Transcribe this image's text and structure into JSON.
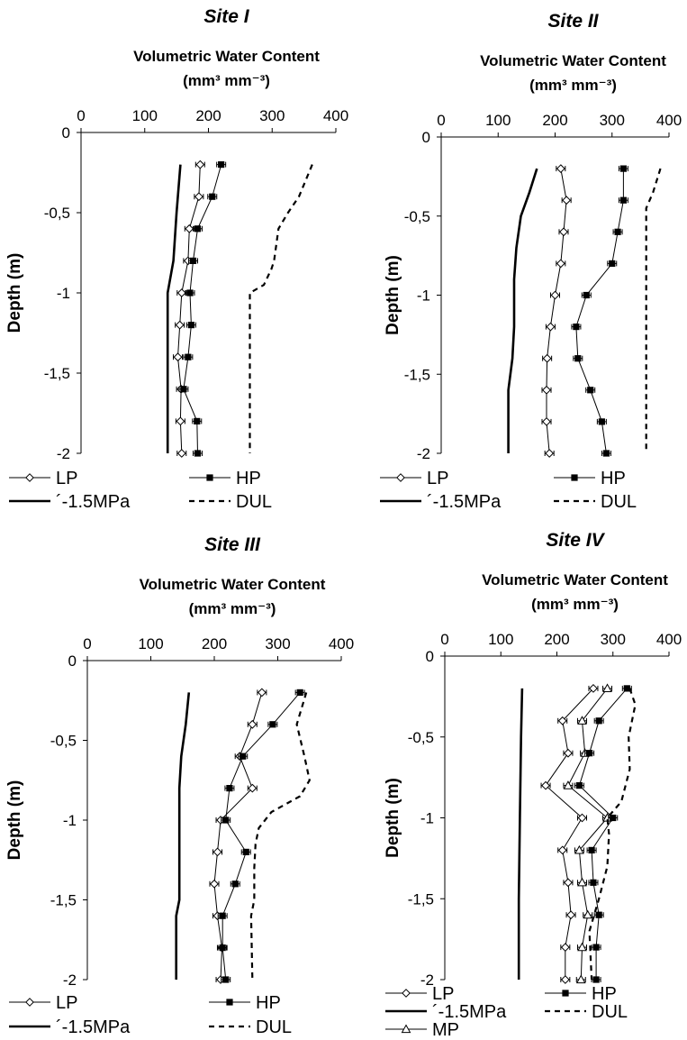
{
  "chart_data": [
    {
      "type": "line",
      "title": "Site I",
      "xlabel_line1": "Volumetric Water Content",
      "xlabel_line2": "(mm³ mm⁻³)",
      "ylabel": "Depth (m)",
      "xlim": [
        0,
        400
      ],
      "ylim": [
        -2,
        0
      ],
      "xticks": [
        "0",
        "100",
        "200",
        "300",
        "400"
      ],
      "yticks": [
        "0",
        "-0,5",
        "-1",
        "-1,5",
        "-2"
      ],
      "legend_rows": [
        [
          "LP",
          "HP"
        ],
        [
          "´-1.5MPa",
          "DUL"
        ]
      ],
      "series": [
        {
          "name": "LP",
          "style": "diamond",
          "points": [
            [
              187,
              -0.2
            ],
            [
              185,
              -0.4
            ],
            [
              170,
              -0.6
            ],
            [
              168,
              -0.8
            ],
            [
              158,
              -1.0
            ],
            [
              155,
              -1.2
            ],
            [
              152,
              -1.4
            ],
            [
              157,
              -1.6
            ],
            [
              156,
              -1.8
            ],
            [
              158,
              -2.0
            ]
          ]
        },
        {
          "name": "HP",
          "style": "square",
          "points": [
            [
              220,
              -0.2
            ],
            [
              206,
              -0.4
            ],
            [
              183,
              -0.6
            ],
            [
              176,
              -0.8
            ],
            [
              171,
              -1.0
            ],
            [
              173,
              -1.2
            ],
            [
              168,
              -1.4
            ],
            [
              161,
              -1.6
            ],
            [
              182,
              -1.8
            ],
            [
              183,
              -2.0
            ]
          ]
        },
        {
          "name": "´-1.5MPa",
          "style": "solid",
          "points": [
            [
              156,
              -0.2
            ],
            [
              150,
              -0.5
            ],
            [
              145,
              -0.8
            ],
            [
              136,
              -1.0
            ],
            [
              136,
              -1.5
            ],
            [
              136,
              -2.0
            ]
          ]
        },
        {
          "name": "DUL",
          "style": "dashed",
          "points": [
            [
              363,
              -0.2
            ],
            [
              342,
              -0.4
            ],
            [
              325,
              -0.5
            ],
            [
              310,
              -0.6
            ],
            [
              303,
              -0.8
            ],
            [
              299,
              -0.85
            ],
            [
              287,
              -0.95
            ],
            [
              265,
              -1.0
            ],
            [
              265,
              -2.0
            ]
          ]
        }
      ]
    },
    {
      "type": "line",
      "title": "Site II",
      "xlabel_line1": "Volumetric Water Content",
      "xlabel_line2": "(mm³ mm⁻³)",
      "ylabel": "Depth (m)",
      "xlim": [
        0,
        400
      ],
      "ylim": [
        -2,
        0
      ],
      "xticks": [
        "0",
        "100",
        "200",
        "300",
        "400"
      ],
      "yticks": [
        "0",
        "-0,5",
        "-1",
        "-1,5",
        "-2"
      ],
      "legend_rows": [
        [
          "LP",
          "HP"
        ],
        [
          "´-1.5MPa",
          "DUL"
        ]
      ],
      "series": [
        {
          "name": "LP",
          "style": "diamond",
          "points": [
            [
              210,
              -0.2
            ],
            [
              220,
              -0.4
            ],
            [
              215,
              -0.6
            ],
            [
              210,
              -0.8
            ],
            [
              200,
              -1.0
            ],
            [
              192,
              -1.2
            ],
            [
              186,
              -1.4
            ],
            [
              185,
              -1.6
            ],
            [
              185,
              -1.8
            ],
            [
              190,
              -2.0
            ]
          ]
        },
        {
          "name": "HP",
          "style": "square",
          "points": [
            [
              320,
              -0.2
            ],
            [
              320,
              -0.4
            ],
            [
              310,
              -0.6
            ],
            [
              300,
              -0.8
            ],
            [
              255,
              -1.0
            ],
            [
              237,
              -1.2
            ],
            [
              240,
              -1.4
            ],
            [
              262,
              -1.6
            ],
            [
              282,
              -1.8
            ],
            [
              290,
              -2.0
            ]
          ]
        },
        {
          "name": "´-1.5MPa",
          "style": "solid",
          "points": [
            [
              168,
              -0.2
            ],
            [
              155,
              -0.35
            ],
            [
              140,
              -0.5
            ],
            [
              132,
              -0.7
            ],
            [
              128,
              -0.9
            ],
            [
              128,
              -1.2
            ],
            [
              125,
              -1.4
            ],
            [
              118,
              -1.6
            ],
            [
              118,
              -2.0
            ]
          ]
        },
        {
          "name": "DUL",
          "style": "dashed",
          "points": [
            [
              385,
              -0.2
            ],
            [
              372,
              -0.35
            ],
            [
              360,
              -0.45
            ],
            [
              360,
              -2.0
            ]
          ]
        }
      ]
    },
    {
      "type": "line",
      "title": "Site III",
      "xlabel_line1": "Volumetric Water Content",
      "xlabel_line2": "(mm³ mm⁻³)",
      "ylabel": "Depth (m)",
      "xlim": [
        0,
        400
      ],
      "ylim": [
        -2,
        0
      ],
      "xticks": [
        "0",
        "100",
        "200",
        "300",
        "400"
      ],
      "yticks": [
        "0",
        "-0,5",
        "-1",
        "-1,5",
        "-2"
      ],
      "legend_rows": [
        [
          "LP",
          "HP"
        ],
        [
          "´-1.5MPa",
          "DUL"
        ]
      ],
      "series": [
        {
          "name": "LP",
          "style": "diamond",
          "points": [
            [
              275,
              -0.2
            ],
            [
              260,
              -0.4
            ],
            [
              240,
              -0.6
            ],
            [
              260,
              -0.8
            ],
            [
              210,
              -1.0
            ],
            [
              205,
              -1.2
            ],
            [
              200,
              -1.4
            ],
            [
              205,
              -1.6
            ],
            [
              212,
              -1.8
            ],
            [
              210,
              -2.0
            ]
          ]
        },
        {
          "name": "HP",
          "style": "square",
          "points": [
            [
              335,
              -0.2
            ],
            [
              292,
              -0.4
            ],
            [
              245,
              -0.6
            ],
            [
              224,
              -0.8
            ],
            [
              218,
              -1.0
            ],
            [
              250,
              -1.2
            ],
            [
              233,
              -1.4
            ],
            [
              213,
              -1.6
            ],
            [
              213,
              -1.8
            ],
            [
              218,
              -2.0
            ]
          ]
        },
        {
          "name": "´-1.5MPa",
          "style": "solid",
          "points": [
            [
              160,
              -0.2
            ],
            [
              155,
              -0.4
            ],
            [
              148,
              -0.6
            ],
            [
              145,
              -0.8
            ],
            [
              145,
              -1.5
            ],
            [
              140,
              -1.6
            ],
            [
              140,
              -2.0
            ]
          ]
        },
        {
          "name": "DUL",
          "style": "dashed",
          "points": [
            [
              345,
              -0.2
            ],
            [
              330,
              -0.4
            ],
            [
              342,
              -0.6
            ],
            [
              350,
              -0.75
            ],
            [
              335,
              -0.85
            ],
            [
              290,
              -0.95
            ],
            [
              270,
              -1.05
            ],
            [
              265,
              -1.15
            ],
            [
              263,
              -1.3
            ],
            [
              263,
              -1.5
            ],
            [
              258,
              -1.6
            ],
            [
              260,
              -2.0
            ]
          ]
        }
      ]
    },
    {
      "type": "line",
      "title": "Site IV",
      "xlabel_line1": "Volumetric Water Content",
      "xlabel_line2": "(mm³ mm⁻³)",
      "ylabel": "Depth (m)",
      "xlim": [
        0,
        400
      ],
      "ylim": [
        -2,
        0
      ],
      "xticks": [
        "0",
        "100",
        "200",
        "300",
        "400"
      ],
      "yticks": [
        "0",
        "-0,5",
        "-1",
        "-1,5",
        "-2"
      ],
      "legend_rows": [
        [
          "LP",
          "HP"
        ],
        [
          "´-1.5MPa",
          "DUL"
        ],
        [
          "MP",
          ""
        ]
      ],
      "series": [
        {
          "name": "LP",
          "style": "diamond",
          "points": [
            [
              265,
              -0.2
            ],
            [
              210,
              -0.4
            ],
            [
              220,
              -0.6
            ],
            [
              180,
              -0.8
            ],
            [
              245,
              -1.0
            ],
            [
              210,
              -1.2
            ],
            [
              220,
              -1.4
            ],
            [
              225,
              -1.6
            ],
            [
              215,
              -1.8
            ],
            [
              215,
              -2.0
            ]
          ]
        },
        {
          "name": "MP",
          "style": "triangle",
          "points": [
            [
              290,
              -0.2
            ],
            [
              245,
              -0.4
            ],
            [
              250,
              -0.6
            ],
            [
              220,
              -0.8
            ],
            [
              290,
              -1.0
            ],
            [
              240,
              -1.2
            ],
            [
              245,
              -1.4
            ],
            [
              255,
              -1.6
            ],
            [
              245,
              -1.8
            ],
            [
              243,
              -2.0
            ]
          ]
        },
        {
          "name": "HP",
          "style": "square",
          "points": [
            [
              325,
              -0.2
            ],
            [
              275,
              -0.4
            ],
            [
              258,
              -0.6
            ],
            [
              240,
              -0.8
            ],
            [
              300,
              -1.0
            ],
            [
              262,
              -1.2
            ],
            [
              265,
              -1.4
            ],
            [
              275,
              -1.6
            ],
            [
              270,
              -1.8
            ],
            [
              270,
              -2.0
            ]
          ]
        },
        {
          "name": "´-1.5MPa",
          "style": "solid",
          "points": [
            [
              138,
              -0.2
            ],
            [
              136,
              -0.5
            ],
            [
              134,
              -1.0
            ],
            [
              132,
              -1.5
            ],
            [
              132,
              -2.0
            ]
          ]
        },
        {
          "name": "DUL",
          "style": "dashed",
          "points": [
            [
              330,
              -0.2
            ],
            [
              340,
              -0.3
            ],
            [
              328,
              -0.5
            ],
            [
              330,
              -0.7
            ],
            [
              315,
              -0.9
            ],
            [
              290,
              -1.0
            ],
            [
              293,
              -1.1
            ],
            [
              290,
              -1.3
            ],
            [
              275,
              -1.5
            ],
            [
              258,
              -1.7
            ],
            [
              262,
              -2.0
            ]
          ]
        }
      ]
    }
  ]
}
